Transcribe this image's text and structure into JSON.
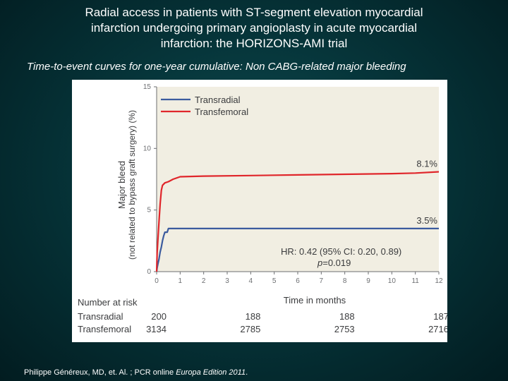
{
  "slide": {
    "title_lines": [
      "Radial access in patients with ST-segment elevation myocardial",
      "infarction undergoing primary angioplasty in acute myocardial",
      "infarction: the HORIZONS-AMI trial"
    ],
    "subtitle": "Time-to-event curves for one-year cumulative:  Non CABG-related major bleeding",
    "citation_main": "Philippe Généreux, MD, et. Al. ; PCR online ",
    "citation_italic": "Europa Edition 2011",
    "citation_end": "."
  },
  "chart_data": {
    "type": "line",
    "title": "",
    "xlabel": "Time in months",
    "ylabel_line1": "Major bleed",
    "ylabel_line2": "(not related to bypass graft surgery) (%)",
    "xlim": [
      0,
      12
    ],
    "ylim": [
      0,
      15
    ],
    "xticks": [
      0,
      1,
      2,
      3,
      4,
      5,
      6,
      7,
      8,
      9,
      10,
      11,
      12
    ],
    "yticks": [
      0,
      5,
      10,
      15
    ],
    "plot_background": "#f1eee2",
    "series": [
      {
        "name": "Transradial",
        "color": "#3b5b9e",
        "end_label": "3.5%",
        "points": [
          [
            0,
            0
          ],
          [
            0.02,
            0.3
          ],
          [
            0.05,
            0.6
          ],
          [
            0.1,
            1.0
          ],
          [
            0.15,
            1.6
          ],
          [
            0.2,
            2.0
          ],
          [
            0.25,
            2.5
          ],
          [
            0.3,
            2.9
          ],
          [
            0.35,
            3.2
          ],
          [
            0.45,
            3.2
          ],
          [
            0.5,
            3.5
          ],
          [
            12,
            3.5
          ]
        ]
      },
      {
        "name": "Transfemoral",
        "color": "#e0262b",
        "end_label": "8.1%",
        "points": [
          [
            0,
            0
          ],
          [
            0.02,
            1.5
          ],
          [
            0.05,
            2.5
          ],
          [
            0.1,
            4.0
          ],
          [
            0.15,
            5.5
          ],
          [
            0.2,
            6.6
          ],
          [
            0.25,
            7.0
          ],
          [
            0.35,
            7.2
          ],
          [
            0.5,
            7.3
          ],
          [
            0.7,
            7.5
          ],
          [
            1.0,
            7.7
          ],
          [
            2,
            7.75
          ],
          [
            4,
            7.8
          ],
          [
            6,
            7.85
          ],
          [
            8,
            7.9
          ],
          [
            10,
            7.95
          ],
          [
            11,
            8.0
          ],
          [
            12,
            8.1
          ]
        ]
      }
    ],
    "annotation_hr": "HR: 0.42 (95% CI: 0.20, 0.89)",
    "annotation_p_prefix": "p",
    "annotation_p_value": "=0.019",
    "risk_table": {
      "header": "Number at risk",
      "timepoints": [
        0,
        4,
        8,
        12
      ],
      "rows": [
        {
          "label": "Transradial",
          "values": [
            "200",
            "188",
            "188",
            "187"
          ]
        },
        {
          "label": "Transfemoral",
          "values": [
            "3134",
            "2785",
            "2753",
            "2716"
          ]
        }
      ]
    }
  }
}
